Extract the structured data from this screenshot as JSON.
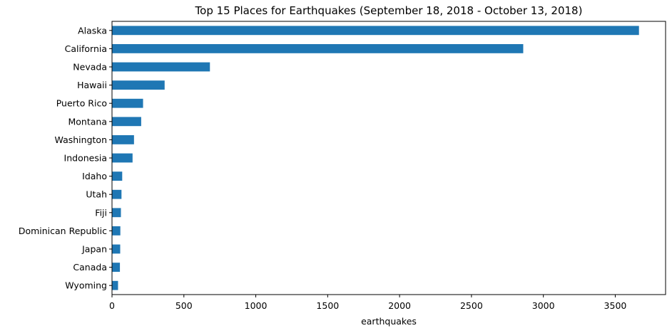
{
  "chart_data": {
    "type": "bar",
    "orientation": "horizontal",
    "title": "Top 15 Places for Earthquakes (September 18, 2018 - October 13, 2018)",
    "xlabel": "earthquakes",
    "ylabel": "",
    "categories": [
      "Alaska",
      "California",
      "Nevada",
      "Hawaii",
      "Puerto Rico",
      "Montana",
      "Washington",
      "Indonesia",
      "Idaho",
      "Utah",
      "Fiji",
      "Dominican Republic",
      "Japan",
      "Canada",
      "Wyoming"
    ],
    "values": [
      3665,
      2860,
      681,
      366,
      216,
      203,
      153,
      143,
      71,
      66,
      62,
      58,
      57,
      55,
      42
    ],
    "xlim": [
      0,
      3850
    ],
    "xticks": [
      0,
      500,
      1000,
      1500,
      2000,
      2500,
      3000,
      3500
    ],
    "grid": false,
    "bar_color": "#1f77b4"
  }
}
